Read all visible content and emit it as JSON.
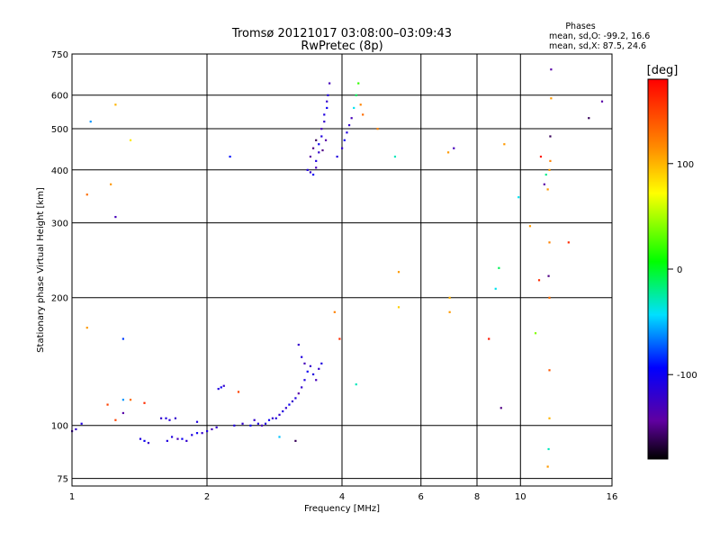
{
  "chart_data": {
    "type": "scatter",
    "title": "Tromsø 20121017 03:08:00–03:09:43",
    "subtitle": "RwPretec (8p)",
    "xlabel": "Frequency [MHz]",
    "ylabel": "Stationary phase Virtual Height [km]",
    "x_scale": "log",
    "y_scale": "log",
    "xlim": [
      1,
      16
    ],
    "ylim": [
      72,
      750
    ],
    "x_ticks": [
      1,
      2,
      4,
      6,
      8,
      10,
      16
    ],
    "y_ticks": [
      75,
      100,
      200,
      300,
      400,
      500,
      600,
      750
    ],
    "grid": true,
    "phase_legend": {
      "title": "Phases",
      "line1": "mean, sd,O: -99.2, 16.6",
      "line2": "mean, sd,X:  87.5, 24.6"
    },
    "colorbar": {
      "label": "[deg]",
      "range": [
        -180,
        180
      ],
      "ticks": [
        100,
        0,
        -100
      ]
    },
    "series": [
      {
        "points": [
          [
            1.0,
            97,
            -130
          ],
          [
            1.02,
            98,
            -120
          ],
          [
            1.05,
            101,
            -110
          ],
          [
            1.3,
            107,
            -140
          ],
          [
            1.42,
            93,
            -110
          ],
          [
            1.45,
            92,
            -100
          ],
          [
            1.48,
            91,
            -120
          ],
          [
            1.58,
            104,
            -120
          ],
          [
            1.62,
            104,
            -110
          ],
          [
            1.65,
            103,
            -115
          ],
          [
            1.7,
            104,
            -120
          ],
          [
            1.63,
            92,
            -110
          ],
          [
            1.67,
            94,
            -110
          ],
          [
            1.72,
            93,
            -130
          ],
          [
            1.76,
            93,
            -100
          ],
          [
            1.8,
            92,
            -120
          ],
          [
            1.85,
            95,
            -110
          ],
          [
            1.9,
            96,
            -100
          ],
          [
            1.95,
            96,
            -120
          ],
          [
            2.0,
            97,
            -110
          ],
          [
            2.05,
            98,
            -130
          ],
          [
            2.1,
            99,
            -120
          ],
          [
            1.9,
            102,
            -110
          ],
          [
            2.12,
            122,
            -110
          ],
          [
            2.15,
            123,
            -100
          ],
          [
            2.18,
            124,
            -120
          ],
          [
            2.3,
            100,
            -110
          ],
          [
            2.4,
            101,
            -120
          ],
          [
            2.5,
            100,
            -100
          ],
          [
            2.55,
            103,
            -120
          ],
          [
            2.6,
            101,
            -110
          ],
          [
            2.65,
            100,
            -130
          ],
          [
            2.7,
            101,
            -110
          ],
          [
            2.75,
            103,
            -100
          ],
          [
            2.8,
            104,
            -120
          ],
          [
            2.85,
            104,
            -110
          ],
          [
            2.9,
            106,
            -120
          ],
          [
            2.95,
            108,
            -110
          ],
          [
            3.0,
            110,
            -120
          ],
          [
            3.05,
            112,
            -100
          ],
          [
            3.1,
            114,
            -120
          ],
          [
            3.15,
            116,
            -110
          ],
          [
            3.2,
            119,
            -140
          ],
          [
            3.25,
            123,
            -120
          ],
          [
            3.3,
            128,
            -110
          ],
          [
            3.35,
            134,
            -100
          ],
          [
            3.4,
            138,
            -120
          ],
          [
            3.45,
            132,
            -110
          ],
          [
            3.5,
            128,
            -130
          ],
          [
            3.55,
            136,
            -120
          ],
          [
            3.6,
            140,
            -110
          ],
          [
            3.2,
            155,
            -120
          ],
          [
            3.25,
            145,
            -110
          ],
          [
            3.3,
            140,
            -130
          ],
          [
            3.15,
            92,
            -160
          ],
          [
            2.9,
            94,
            -50
          ],
          [
            3.35,
            400,
            -110
          ],
          [
            3.4,
            395,
            -120
          ],
          [
            3.45,
            390,
            -100
          ],
          [
            3.5,
            405,
            -130
          ],
          [
            3.5,
            420,
            -110
          ],
          [
            3.55,
            440,
            -120
          ],
          [
            3.55,
            460,
            -100
          ],
          [
            3.6,
            480,
            -110
          ],
          [
            3.6,
            500,
            -130
          ],
          [
            3.65,
            520,
            -120
          ],
          [
            3.65,
            540,
            -110
          ],
          [
            3.7,
            560,
            -100
          ],
          [
            3.7,
            580,
            -120
          ],
          [
            3.72,
            600,
            -110
          ],
          [
            3.75,
            640,
            -130
          ],
          [
            3.45,
            450,
            -150
          ],
          [
            3.5,
            470,
            -160
          ],
          [
            3.4,
            430,
            -140
          ],
          [
            3.62,
            445,
            -150
          ],
          [
            3.68,
            470,
            -140
          ],
          [
            3.9,
            430,
            -110
          ],
          [
            4.0,
            450,
            -120
          ],
          [
            4.05,
            470,
            -100
          ],
          [
            4.1,
            490,
            -110
          ],
          [
            4.15,
            510,
            -120
          ],
          [
            4.2,
            530,
            -130
          ],
          [
            4.25,
            560,
            -40
          ],
          [
            4.3,
            600,
            -10
          ],
          [
            4.35,
            640,
            20
          ],
          [
            4.4,
            570,
            120
          ],
          [
            4.45,
            540,
            130
          ],
          [
            1.1,
            520,
            -60
          ],
          [
            1.25,
            570,
            100
          ],
          [
            1.35,
            470,
            80
          ],
          [
            1.22,
            370,
            110
          ],
          [
            1.08,
            350,
            130
          ],
          [
            1.25,
            310,
            -130
          ],
          [
            1.08,
            170,
            110
          ],
          [
            1.3,
            160,
            -80
          ],
          [
            1.3,
            115,
            -60
          ],
          [
            1.2,
            112,
            150
          ],
          [
            1.35,
            115,
            130
          ],
          [
            1.45,
            113,
            160
          ],
          [
            1.25,
            103,
            150
          ],
          [
            2.25,
            430,
            -90
          ],
          [
            2.35,
            120,
            150
          ],
          [
            3.85,
            185,
            120
          ],
          [
            3.95,
            160,
            160
          ],
          [
            4.3,
            125,
            -30
          ],
          [
            4.8,
            500,
            120
          ],
          [
            5.25,
            430,
            -30
          ],
          [
            5.35,
            230,
            110
          ],
          [
            5.35,
            190,
            90
          ],
          [
            6.9,
            440,
            110
          ],
          [
            7.1,
            450,
            -130
          ],
          [
            6.95,
            200,
            100
          ],
          [
            6.95,
            185,
            110
          ],
          [
            8.5,
            160,
            170
          ],
          [
            8.8,
            210,
            -40
          ],
          [
            8.95,
            235,
            -10
          ],
          [
            9.05,
            110,
            -150
          ],
          [
            9.2,
            460,
            110
          ],
          [
            9.9,
            345,
            -40
          ],
          [
            10.5,
            295,
            110
          ],
          [
            10.8,
            165,
            40
          ],
          [
            11.1,
            430,
            170
          ],
          [
            11.3,
            370,
            -140
          ],
          [
            11.4,
            390,
            -20
          ],
          [
            11.5,
            360,
            110
          ],
          [
            11.0,
            220,
            160
          ],
          [
            11.55,
            225,
            -150
          ],
          [
            11.6,
            400,
            110
          ],
          [
            11.65,
            420,
            120
          ],
          [
            11.65,
            480,
            -160
          ],
          [
            11.7,
            690,
            -140
          ],
          [
            11.7,
            590,
            110
          ],
          [
            11.6,
            270,
            120
          ],
          [
            11.6,
            200,
            130
          ],
          [
            11.6,
            135,
            140
          ],
          [
            11.6,
            104,
            100
          ],
          [
            11.55,
            88,
            -30
          ],
          [
            11.5,
            80,
            110
          ],
          [
            12.8,
            270,
            160
          ],
          [
            14.2,
            530,
            -160
          ],
          [
            15.2,
            580,
            -140
          ]
        ]
      }
    ]
  }
}
